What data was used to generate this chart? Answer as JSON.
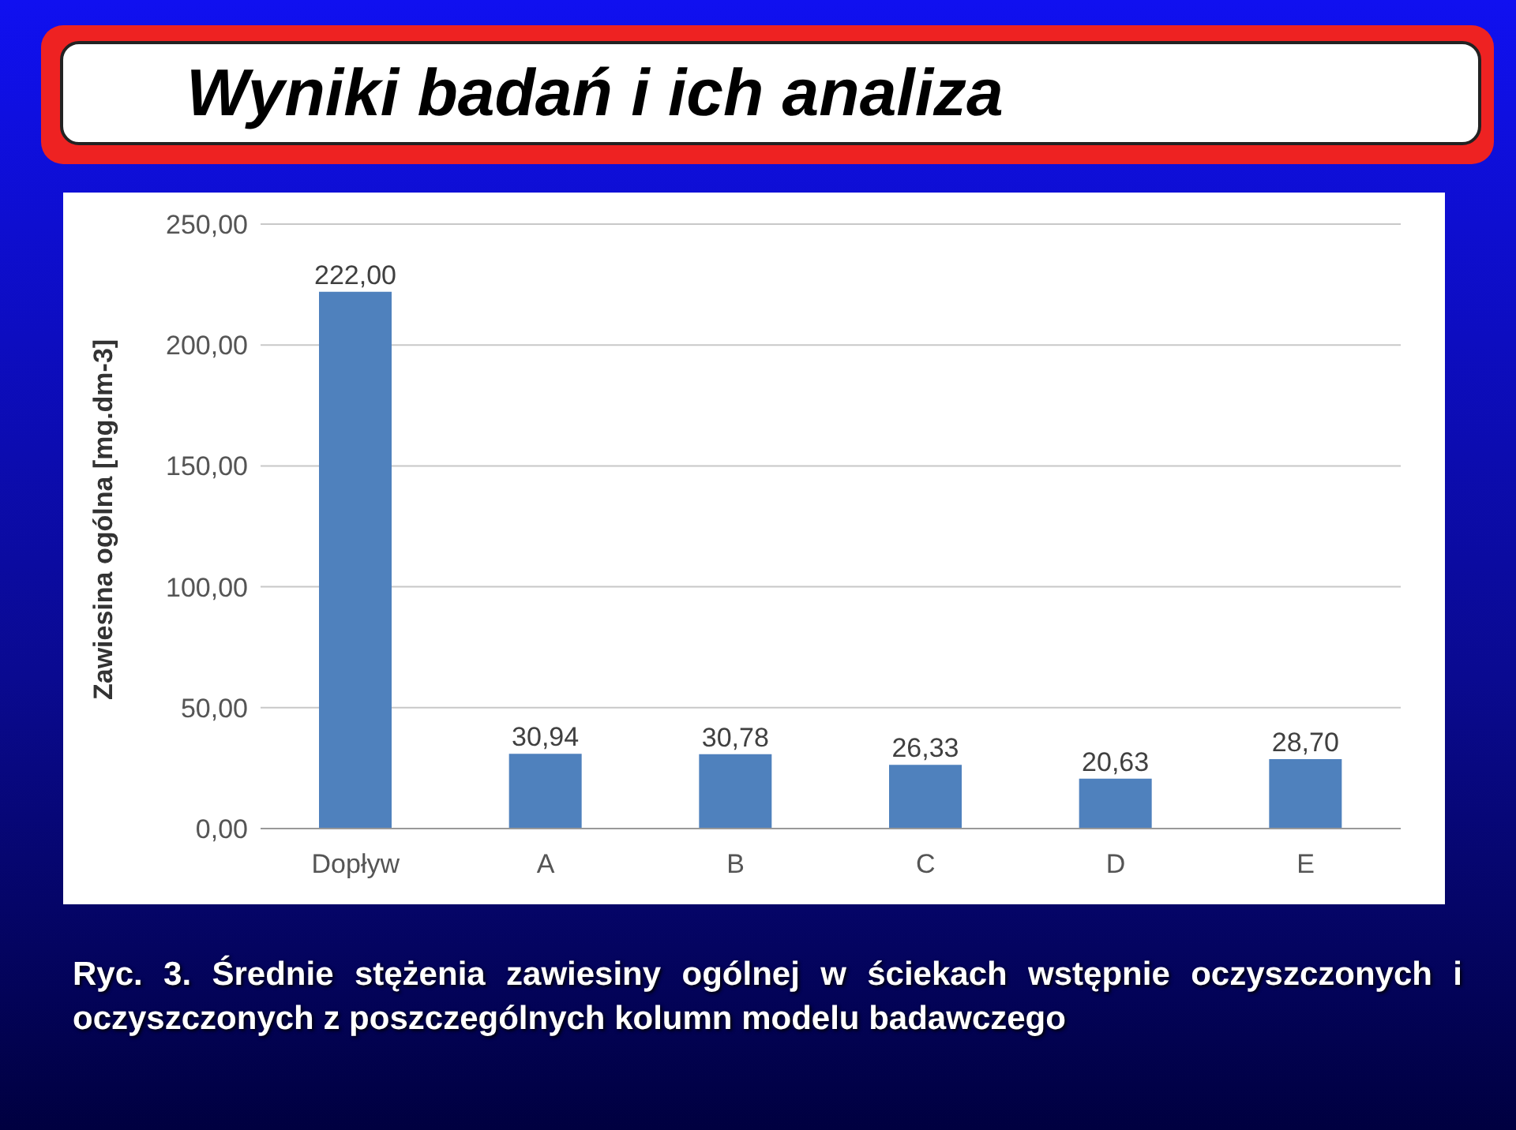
{
  "chart_data": {
    "type": "bar",
    "title": "Wyniki badań i ich analiza",
    "ylabel": "Zawiesina ogólna [mg.dm-3]",
    "categories": [
      "Dopływ",
      "A",
      "B",
      "C",
      "D",
      "E"
    ],
    "values": [
      222.0,
      30.94,
      30.78,
      26.33,
      20.63,
      28.7
    ],
    "value_labels": [
      "222,00",
      "30,94",
      "30,78",
      "26,33",
      "20,63",
      "28,70"
    ],
    "color": "#4f81bd",
    "ylim": [
      0,
      250
    ],
    "yticks": [
      {
        "value": 0,
        "label": "0,00"
      },
      {
        "value": 50,
        "label": "50,00"
      },
      {
        "value": 100,
        "label": "100,00"
      },
      {
        "value": 150,
        "label": "150,00"
      },
      {
        "value": 200,
        "label": "200,00"
      },
      {
        "value": 250,
        "label": "250,00"
      }
    ],
    "grid": "y",
    "annotations": [
      "Ryc. 3. Średnie stężenia zawiesiny ogólnej w ściekach wstępnie oczyszczonych i oczyszczonych z poszczególnych kolumn modelu badawczego"
    ]
  }
}
